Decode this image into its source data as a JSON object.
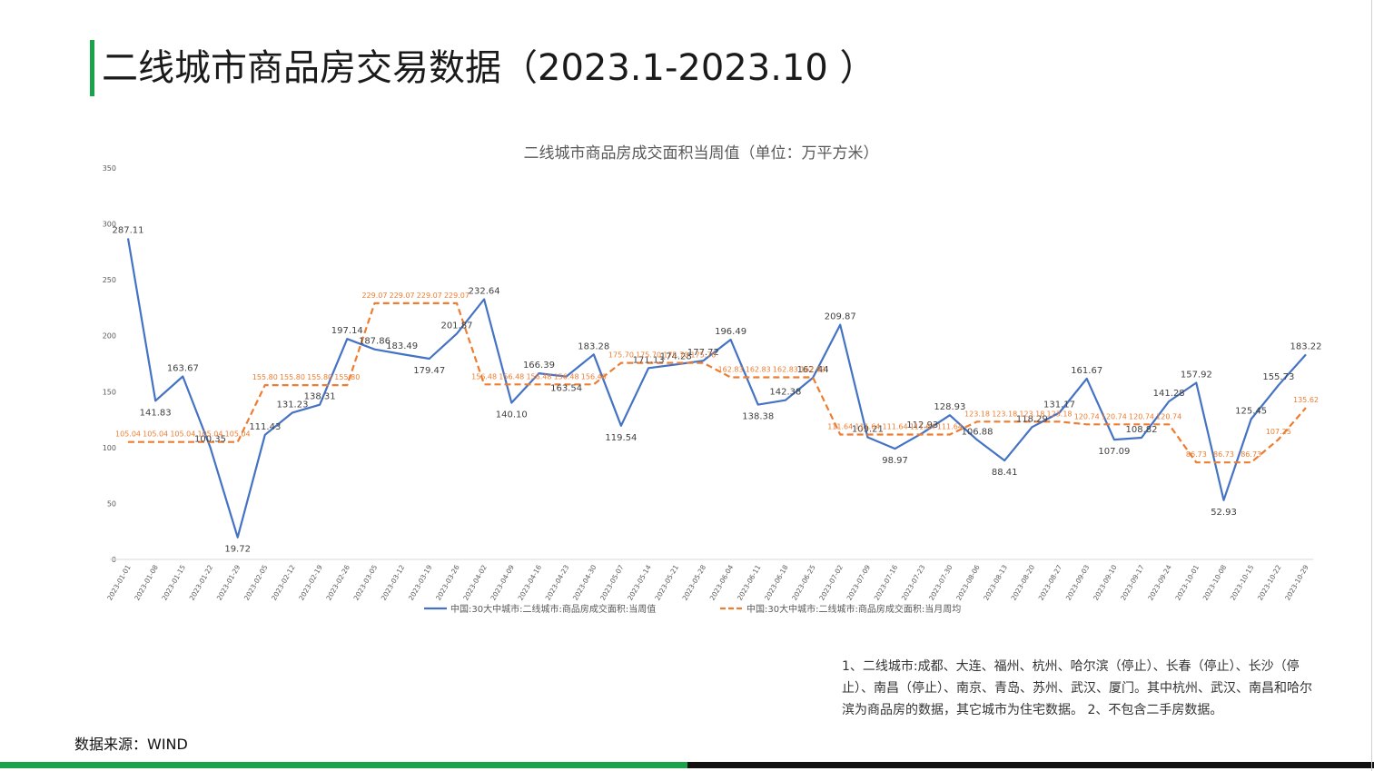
{
  "page": {
    "title": "二线城市商品房交易数据（2023.1-2023.10 ）",
    "source": "数据来源：WIND",
    "notes": "1、二线城市:成都、大连、福州、杭州、哈尔滨（停止）、长春（停止）、长沙（停止）、南昌（停止）、南京、青岛、苏州、武汉、厦门。其中杭州、武汉、南昌和哈尔滨为商品房的数据，其它城市为住宅数据。 2、不包含二手房数据。",
    "colors": {
      "accent_green": "#1aa34a",
      "bottom_black": "#111111"
    }
  },
  "chart_data": {
    "type": "line",
    "title": "二线城市商品房成交面积当周值（单位：万平方米）",
    "ylim": [
      0,
      350
    ],
    "yticks": [
      0,
      50,
      100,
      150,
      200,
      250,
      300,
      350
    ],
    "grid": false,
    "legend_position": "bottom",
    "categories": [
      "2023-01-01",
      "2023-01-08",
      "2023-01-15",
      "2023-01-22",
      "2023-01-29",
      "2023-02-05",
      "2023-02-12",
      "2023-02-19",
      "2023-02-26",
      "2023-03-05",
      "2023-03-12",
      "2023-03-19",
      "2023-03-26",
      "2023-04-02",
      "2023-04-09",
      "2023-04-16",
      "2023-04-23",
      "2023-04-30",
      "2023-05-07",
      "2023-05-14",
      "2023-05-21",
      "2023-05-28",
      "2023-06-04",
      "2023-06-11",
      "2023-06-18",
      "2023-06-25",
      "2023-07-02",
      "2023-07-09",
      "2023-07-16",
      "2023-07-23",
      "2023-07-30",
      "2023-08-06",
      "2023-08-13",
      "2023-08-20",
      "2023-08-27",
      "2023-09-03",
      "2023-09-10",
      "2023-09-17",
      "2023-09-24",
      "2023-10-01",
      "2023-10-08",
      "2023-10-15",
      "2023-10-22",
      "2023-10-29"
    ],
    "series": [
      {
        "name": "中国:30大中城市:二线城市:商品房成交面积:当周值",
        "color": "#4472c4",
        "style": "solid",
        "values": [
          287.11,
          141.83,
          163.67,
          100.35,
          19.72,
          111.43,
          131.23,
          138.31,
          197.14,
          187.86,
          183.49,
          179.47,
          201.87,
          232.64,
          140.1,
          166.39,
          163.54,
          183.28,
          119.54,
          171.13,
          174.28,
          177.72,
          196.49,
          138.38,
          142.38,
          162.44,
          209.87,
          109.21,
          98.97,
          112.93,
          128.93,
          106.88,
          88.41,
          118.29,
          131.17,
          161.67,
          107.09,
          108.82,
          141.28,
          157.92,
          52.93,
          125.45,
          155.73,
          183.22
        ],
        "labels": [
          "287.11",
          "141.83",
          "163.67",
          "100.35",
          "19.72",
          "111.43",
          "131.23",
          "138.31",
          "197.14",
          "187.86",
          "183.49",
          "179.47",
          "201.87",
          "232.64",
          "140.10",
          "166.39",
          "163.54",
          "183.28",
          "119.54",
          "171.13",
          "174.28",
          "177.72",
          "196.49",
          "138.38",
          "142.38",
          "162.44",
          "209.87",
          "109.21",
          "98.97",
          "112.93",
          "128.93",
          "106.88",
          "88.41",
          "118.29",
          "131.17",
          "161.67",
          "107.09",
          "108.82",
          "141.28",
          "157.92",
          "52.93",
          "125.45",
          "155.73",
          "183.22"
        ]
      },
      {
        "name": "中国:30大中城市:二线城市:商品房成交面积:当月周均",
        "color": "#ed7d31",
        "style": "dashed",
        "values": [
          105.04,
          105.04,
          105.04,
          105.04,
          105.04,
          155.8,
          155.8,
          155.8,
          155.8,
          229.07,
          229.07,
          229.07,
          229.07,
          156.48,
          156.48,
          156.48,
          156.48,
          156.48,
          175.7,
          175.7,
          175.7,
          175.7,
          162.83,
          162.83,
          162.83,
          162.83,
          111.64,
          111.64,
          111.64,
          111.64,
          111.64,
          123.18,
          123.18,
          123.18,
          123.18,
          120.74,
          120.74,
          120.74,
          120.74,
          86.73,
          86.73,
          86.73,
          107.25,
          135.62
        ],
        "labels": [
          "105.04",
          "105.04",
          "105.04",
          "105.04",
          "105.04",
          "155.80",
          "155.80",
          "155.80",
          "155.80",
          "229.07",
          "229.07",
          "229.07",
          "229.07",
          "156.48",
          "156.48",
          "156.48",
          "156.48",
          "156.48",
          "175.70",
          "175.70",
          "175.70",
          "175.70",
          "162.83",
          "162.83",
          "162.83",
          "162.83",
          "111.64",
          "111.64",
          "111.64",
          "111.64",
          "111.64",
          "123.18",
          "123.18",
          "123.18",
          "123.18",
          "120.74",
          "120.74",
          "120.74",
          "120.74",
          "86.73",
          "86.73",
          "86.73",
          "107.25",
          "135.62"
        ]
      }
    ]
  }
}
